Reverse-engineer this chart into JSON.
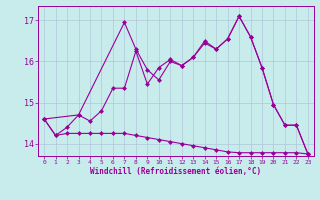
{
  "xlabel": "Windchill (Refroidissement éolien,°C)",
  "background_color": "#c8ecec",
  "grid_color": "#b0c8d8",
  "line_color": "#990099",
  "xlim": [
    -0.5,
    23.5
  ],
  "ylim": [
    13.7,
    17.35
  ],
  "yticks": [
    14,
    15,
    16,
    17
  ],
  "xticks": [
    0,
    1,
    2,
    3,
    4,
    5,
    6,
    7,
    8,
    9,
    10,
    11,
    12,
    13,
    14,
    15,
    16,
    17,
    18,
    19,
    20,
    21,
    22,
    23
  ],
  "series1_x": [
    0,
    1,
    2,
    3,
    4,
    5,
    6,
    7,
    8,
    9,
    10,
    11,
    12,
    13,
    14,
    15,
    16,
    17,
    18,
    19,
    20,
    21,
    22,
    23
  ],
  "series1_y": [
    14.6,
    14.2,
    14.25,
    14.25,
    14.25,
    14.25,
    14.25,
    14.25,
    14.2,
    14.15,
    14.1,
    14.05,
    14.0,
    13.95,
    13.9,
    13.85,
    13.8,
    13.78,
    13.78,
    13.78,
    13.78,
    13.78,
    13.78,
    13.75
  ],
  "series2_x": [
    0,
    1,
    2,
    3,
    4,
    5,
    6,
    7,
    8,
    9,
    10,
    11,
    12,
    13,
    14,
    15,
    16,
    17,
    18,
    19,
    20,
    21,
    22,
    23
  ],
  "series2_y": [
    14.6,
    14.2,
    14.4,
    14.7,
    14.55,
    14.8,
    15.35,
    15.35,
    16.25,
    15.45,
    15.85,
    16.05,
    15.9,
    16.1,
    16.45,
    16.3,
    16.55,
    17.1,
    16.6,
    15.85,
    14.95,
    14.45,
    14.45,
    13.75
  ],
  "series3_x": [
    0,
    3,
    7,
    8,
    9,
    10,
    11,
    12,
    13,
    14,
    15,
    16,
    17,
    18,
    19,
    20,
    21,
    22,
    23
  ],
  "series3_y": [
    14.6,
    14.7,
    16.95,
    16.3,
    15.8,
    15.55,
    16.0,
    15.9,
    16.1,
    16.5,
    16.3,
    16.55,
    17.1,
    16.6,
    15.85,
    14.95,
    14.45,
    14.45,
    13.75
  ],
  "marker_size": 2.5,
  "linewidth": 0.8
}
